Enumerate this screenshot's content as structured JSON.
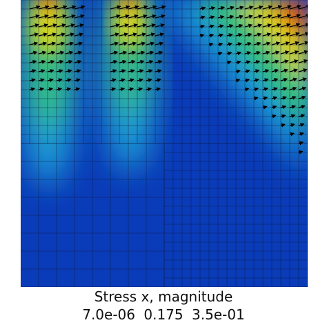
{
  "legend": {
    "title": "Stress x, magnitude",
    "min_label": "7.0e-06",
    "mid_label": "0.175",
    "max_label": "3.5e-01"
  },
  "colormap": {
    "low": "#0a3bb8",
    "mid_low": "#1e9fd6",
    "mid": "#35c07a",
    "mid_high": "#d8d61e",
    "high": "#d81f10"
  }
}
